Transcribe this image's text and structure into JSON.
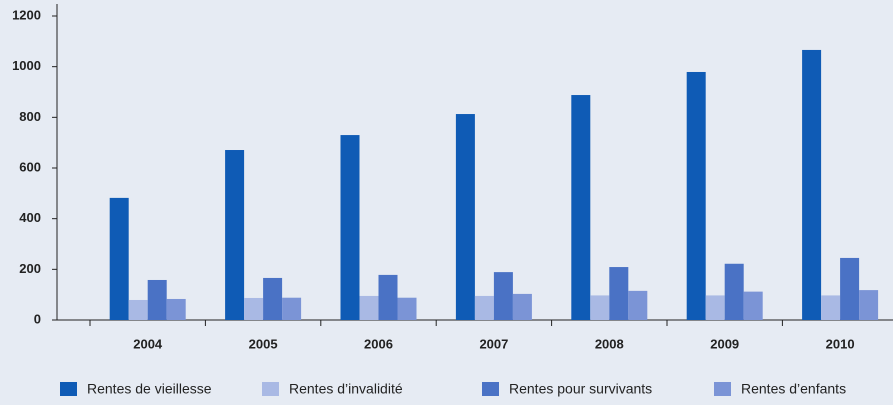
{
  "chart_data": {
    "type": "bar",
    "categories": [
      "2004",
      "2005",
      "2006",
      "2007",
      "2008",
      "2009",
      "2010"
    ],
    "series": [
      {
        "name": "Rentes de vieillesse",
        "color": "#0f5bb5",
        "values": [
          482,
          671,
          730,
          813,
          888,
          979,
          1066
        ]
      },
      {
        "name": "Rentes d’invalidité",
        "color": "#a9b9e4",
        "values": [
          79,
          87,
          95,
          95,
          97,
          97,
          97
        ]
      },
      {
        "name": "Rentes pour survivants",
        "color": "#4a72c5",
        "values": [
          158,
          166,
          178,
          189,
          209,
          222,
          245
        ]
      },
      {
        "name": "Rentes d’enfants",
        "color": "#7b94d6",
        "values": [
          83,
          88,
          88,
          103,
          115,
          112,
          118
        ]
      }
    ],
    "ylim": [
      0,
      1200
    ],
    "yticks": [
      0,
      200,
      400,
      600,
      800,
      1000,
      1200
    ]
  }
}
